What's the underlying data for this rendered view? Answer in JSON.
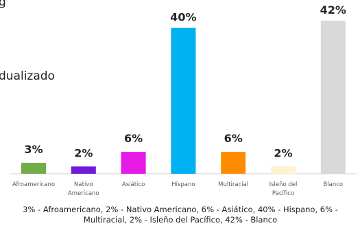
{
  "fragments": {
    "top": "g",
    "middle": "dualizado"
  },
  "chart_data": {
    "type": "bar",
    "categories": [
      "Afroamericano",
      "Nativo Americano",
      "Asiático",
      "Hispano",
      "Multiracial",
      "Isleño del Pacífico",
      "Blanco"
    ],
    "category_lines": [
      [
        "Afroamericano"
      ],
      [
        "Nativo",
        "Americano"
      ],
      [
        "Asiático"
      ],
      [
        "Hispano"
      ],
      [
        "Multiracial"
      ],
      [
        "Isleño del",
        "Pacífico"
      ],
      [
        "Blanco"
      ]
    ],
    "values": [
      3,
      2,
      6,
      40,
      6,
      2,
      42
    ],
    "data_labels": [
      "3%",
      "2%",
      "6%",
      "40%",
      "6%",
      "2%",
      "42%"
    ],
    "colors": [
      "#70ad47",
      "#6f1bd6",
      "#e619e6",
      "#00b0f0",
      "#ff8c00",
      "#fff2cc",
      "#d9d9d9"
    ],
    "title": "",
    "xlabel": "",
    "ylabel": "",
    "ylim": [
      0,
      42
    ],
    "grid": false,
    "legend": "none"
  },
  "caption": "3% - Afroamericano, 2% - Nativo Americano, 6% - Asiático, 40% - Hispano, 6% - Multiracial, 2% - Isleño del Pacífico, 42% - Blanco"
}
